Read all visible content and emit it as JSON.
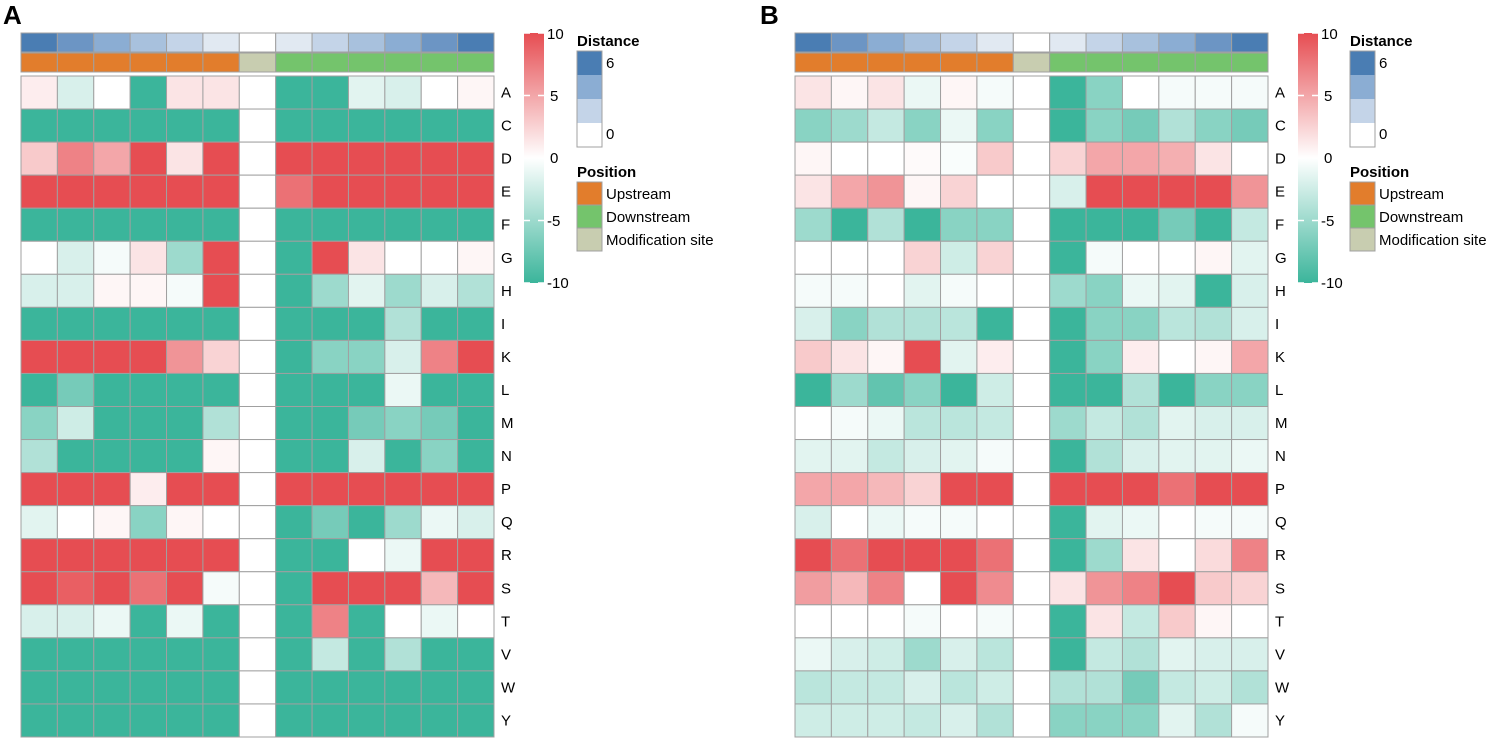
{
  "colors": {
    "neg": "#3bb59b",
    "mid": "#ffffff",
    "pos": "#e64d52",
    "grid": "#a0a0a0",
    "upstream": "#e27d2c",
    "downstream": "#74c46c",
    "modification": "#c8cdb0",
    "dist_6": "#4a7db3",
    "dist_5": "#6c95c4",
    "dist_4": "#8badd3",
    "dist_3": "#a8c1dd",
    "dist_2": "#c4d4e8",
    "dist_1": "#e1e9f2",
    "dist_0": "#ffffff"
  },
  "chart_data": [
    {
      "type": "heatmap",
      "panel_label": "A",
      "rows": [
        "A",
        "C",
        "D",
        "E",
        "F",
        "G",
        "H",
        "I",
        "K",
        "L",
        "M",
        "N",
        "P",
        "Q",
        "R",
        "S",
        "T",
        "V",
        "W",
        "Y"
      ],
      "distance_annotation": [
        6,
        5,
        4,
        3,
        2,
        1,
        0,
        1,
        2,
        3,
        4,
        5,
        6
      ],
      "position_annotation": [
        "Upstream",
        "Upstream",
        "Upstream",
        "Upstream",
        "Upstream",
        "Upstream",
        "Modification site",
        "Downstream",
        "Downstream",
        "Downstream",
        "Downstream",
        "Downstream",
        "Downstream"
      ],
      "color_range": [
        -10,
        10
      ],
      "values": [
        [
          1,
          -2,
          0,
          -10,
          1.5,
          1.5,
          0,
          -10,
          -10,
          -1.5,
          -2,
          0,
          0.5
        ],
        [
          -10,
          -10,
          -10,
          -10,
          -10,
          -10,
          0,
          -10,
          -10,
          -10,
          -10,
          -10,
          -10
        ],
        [
          3,
          7,
          5,
          10,
          1.5,
          10,
          0,
          10,
          10,
          10,
          10,
          10,
          10
        ],
        [
          10,
          10,
          10,
          10,
          10,
          10,
          0,
          8,
          10,
          10,
          10,
          10,
          10
        ],
        [
          -10,
          -10,
          -10,
          -10,
          -10,
          -10,
          0,
          -10,
          -10,
          -10,
          -10,
          -10,
          -10
        ],
        [
          0,
          -2,
          -0.5,
          1.5,
          -5,
          10,
          0,
          -10,
          10,
          1.5,
          0,
          0,
          0.5
        ],
        [
          -2,
          -2,
          0.5,
          0.5,
          -0.5,
          10,
          0,
          -10,
          -5,
          -1.5,
          -5,
          -2,
          -4
        ],
        [
          -10,
          -10,
          -10,
          -10,
          -10,
          -10,
          0,
          -10,
          -10,
          -10,
          -4,
          -10,
          -10
        ],
        [
          10,
          10,
          10,
          10,
          6,
          2.5,
          0,
          -10,
          -6,
          -6,
          -2,
          7,
          10
        ],
        [
          -10,
          -7,
          -10,
          -10,
          -10,
          -10,
          0,
          -10,
          -10,
          -10,
          -1,
          -10,
          -10
        ],
        [
          -6,
          -2.5,
          -10,
          -10,
          -10,
          -4,
          0,
          -10,
          -10,
          -7,
          -6,
          -7,
          -10
        ],
        [
          -4,
          -10,
          -10,
          -10,
          -10,
          0.5,
          0,
          -10,
          -10,
          -2,
          -10,
          -6,
          -10
        ],
        [
          10,
          10,
          10,
          1,
          10,
          10,
          0,
          10,
          10,
          10,
          10,
          10,
          10
        ],
        [
          -1.5,
          0,
          0.5,
          -6,
          0.5,
          0,
          0,
          -10,
          -7,
          -10,
          -5,
          -1,
          -2
        ],
        [
          10,
          10,
          10,
          10,
          10,
          10,
          0,
          -10,
          -10,
          0,
          -1,
          10,
          10
        ],
        [
          10,
          9,
          10,
          8,
          10,
          -0.5,
          0,
          -10,
          10,
          10,
          10,
          4,
          10
        ],
        [
          -2,
          -2,
          -1,
          -10,
          -1,
          -10,
          0,
          -10,
          7,
          -10,
          0,
          -1,
          0
        ],
        [
          -10,
          -10,
          -10,
          -10,
          -10,
          -10,
          0,
          -10,
          -3,
          -10,
          -4,
          -10,
          -10
        ],
        [
          -10,
          -10,
          -10,
          -10,
          -10,
          -10,
          0,
          -10,
          -10,
          -10,
          -10,
          -10,
          -10
        ],
        [
          -10,
          -10,
          -10,
          -10,
          -10,
          -10,
          0,
          -10,
          -10,
          -10,
          -10,
          -10,
          -10
        ]
      ]
    },
    {
      "type": "heatmap",
      "panel_label": "B",
      "rows": [
        "A",
        "C",
        "D",
        "E",
        "F",
        "G",
        "H",
        "I",
        "K",
        "L",
        "M",
        "N",
        "P",
        "Q",
        "R",
        "S",
        "T",
        "V",
        "W",
        "Y"
      ],
      "distance_annotation": [
        6,
        5,
        4,
        3,
        2,
        1,
        0,
        1,
        2,
        3,
        4,
        5,
        6
      ],
      "position_annotation": [
        "Upstream",
        "Upstream",
        "Upstream",
        "Upstream",
        "Upstream",
        "Upstream",
        "Modification site",
        "Downstream",
        "Downstream",
        "Downstream",
        "Downstream",
        "Downstream",
        "Downstream"
      ],
      "color_range": [
        -10,
        10
      ],
      "values": [
        [
          1.5,
          0.5,
          1.5,
          -1,
          0.5,
          -0.5,
          0,
          -10,
          -6,
          0,
          -0.5,
          -0.5,
          -0.5
        ],
        [
          -6,
          -5,
          -3,
          -6,
          -1,
          -6,
          0,
          -10,
          -6,
          -7,
          -4,
          -6,
          -7
        ],
        [
          0.5,
          0,
          0,
          0.3,
          -0.3,
          3,
          0,
          2.5,
          5,
          5,
          4.5,
          1.5,
          0
        ],
        [
          1.5,
          5,
          6,
          0.5,
          2.5,
          0,
          0,
          -2,
          10,
          10,
          10,
          10,
          6
        ],
        [
          -5,
          -10,
          -4,
          -10,
          -6,
          -6,
          0,
          -10,
          -10,
          -10,
          -7,
          -10,
          -3
        ],
        [
          0,
          0,
          0,
          2.5,
          -2.5,
          2.5,
          0,
          -10,
          -0.5,
          0,
          0,
          0.5,
          -1.5
        ],
        [
          -0.5,
          -0.5,
          0,
          -1.5,
          -0.5,
          0,
          0,
          -5,
          -6,
          -1,
          -1.5,
          -10,
          -2
        ],
        [
          -2,
          -6,
          -4,
          -4,
          -3.5,
          -10,
          0,
          -10,
          -6,
          -6,
          -3.5,
          -4,
          -2
        ],
        [
          3,
          1.5,
          0.5,
          10,
          -1.5,
          1,
          0,
          -10,
          -6,
          1,
          0,
          0.5,
          5
        ],
        [
          -10,
          -5,
          -8,
          -6,
          -10,
          -2.5,
          0,
          -10,
          -10,
          -4,
          -10,
          -6,
          -6
        ],
        [
          0,
          -0.5,
          -1,
          -3.5,
          -3.5,
          -3,
          0,
          -5,
          -3,
          -4,
          -1.5,
          -2,
          -2
        ],
        [
          -1.5,
          -1.5,
          -3,
          -2,
          -1.5,
          -0.5,
          0,
          -10,
          -4,
          -2,
          -1.5,
          -1.5,
          -1
        ],
        [
          5,
          5,
          4,
          2.5,
          10,
          10,
          0,
          10,
          10,
          10,
          8,
          10,
          10
        ],
        [
          -2,
          0,
          -1,
          -0.5,
          -0.5,
          0,
          0,
          -10,
          -1.5,
          -1,
          0,
          -0.5,
          -0.5
        ],
        [
          10,
          8,
          10,
          10,
          10,
          8,
          0,
          -10,
          -5,
          1.5,
          0,
          2,
          7
        ],
        [
          5.5,
          4,
          7,
          0,
          10,
          6.5,
          0,
          1.5,
          6,
          7,
          10,
          3,
          2.5
        ],
        [
          0,
          0,
          0,
          -0.5,
          0,
          -0.5,
          0,
          -10,
          1.5,
          -3,
          3,
          0.5,
          0
        ],
        [
          -1,
          -2,
          -2.5,
          -5,
          -2,
          -3.5,
          0,
          -10,
          -3,
          -4,
          -1.5,
          -2,
          -2
        ],
        [
          -3.5,
          -3,
          -3,
          -2,
          -3.5,
          -2.5,
          0,
          -4,
          -4,
          -7,
          -3,
          -2.5,
          -4
        ],
        [
          -2.5,
          -2.5,
          -2.5,
          -3,
          -2,
          -4,
          0,
          -6,
          -6,
          -6,
          -1.5,
          -4,
          -0.5
        ]
      ]
    }
  ],
  "legend": {
    "colorbar_ticks": [
      "10",
      "5",
      "0",
      "-5",
      "-10"
    ],
    "distance_title": "Distance",
    "distance_max_label": "6",
    "distance_min_label": "0",
    "position_title": "Position",
    "position_items": [
      "Upstream",
      "Downstream",
      "Modification site"
    ]
  }
}
